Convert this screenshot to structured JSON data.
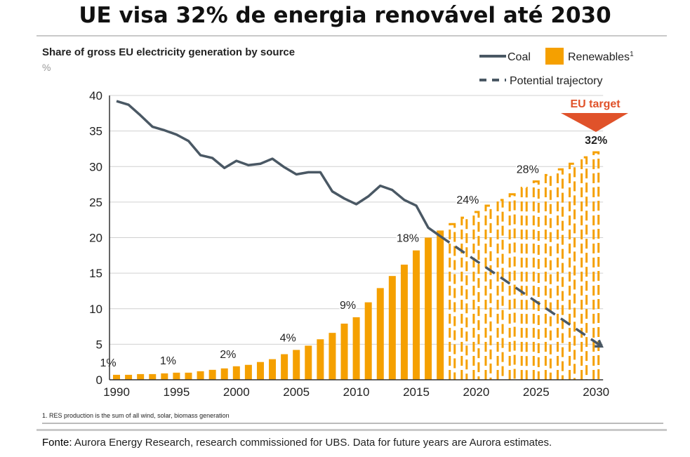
{
  "header": {
    "title": "UE visa 32% de energia renovável até 2030"
  },
  "footer": {
    "source_label": "Fonte:",
    "source_text": "Aurora Energy Research, research commissioned for UBS. Data for future years are Aurora estimates."
  },
  "chart_data": {
    "type": "bar",
    "title": "Share of gross EU electricity generation by source",
    "subtitle": "%",
    "xlabel": "",
    "ylabel": "%",
    "ylim": [
      0,
      40
    ],
    "yticks": [
      0,
      5,
      10,
      15,
      20,
      25,
      30,
      35,
      40
    ],
    "xticks": [
      1990,
      1995,
      2000,
      2005,
      2010,
      2015,
      2020,
      2025,
      2030
    ],
    "grid": true,
    "legend": {
      "placement": "top-right",
      "entries": [
        {
          "name": "Coal",
          "marker": "line",
          "color": "#4a5864"
        },
        {
          "name": "Renewables",
          "superscript": "1",
          "marker": "square",
          "color": "#f5a000"
        },
        {
          "name": "Potential trajectory",
          "marker": "dashed-line",
          "color": "#4a5864"
        }
      ]
    },
    "colors": {
      "renewables": "#f5a000",
      "coal": "#4a5864",
      "target": "#e0522a",
      "grid": "#d0d0d0",
      "axis": "#333333"
    },
    "series": [
      {
        "name": "Renewables",
        "kind": "bar",
        "x": [
          1990,
          1991,
          1992,
          1993,
          1994,
          1995,
          1996,
          1997,
          1998,
          1999,
          2000,
          2001,
          2002,
          2003,
          2004,
          2005,
          2006,
          2007,
          2008,
          2009,
          2010,
          2011,
          2012,
          2013,
          2014,
          2015,
          2016,
          2017
        ],
        "values": [
          0.7,
          0.7,
          0.8,
          0.8,
          0.9,
          1.0,
          1.0,
          1.2,
          1.4,
          1.6,
          1.9,
          2.1,
          2.5,
          2.9,
          3.6,
          4.2,
          4.8,
          5.7,
          6.6,
          7.9,
          8.8,
          10.9,
          12.9,
          14.6,
          16.2,
          18.2,
          20.0,
          21.0
        ]
      },
      {
        "name": "Renewables (projected)",
        "kind": "bar-dashed",
        "x": [
          2018,
          2019,
          2020,
          2021,
          2022,
          2023,
          2024,
          2025,
          2026,
          2027,
          2028,
          2029,
          2030
        ],
        "values": [
          21.9,
          22.8,
          23.6,
          24.5,
          25.3,
          26.1,
          27.0,
          27.9,
          28.8,
          29.6,
          30.4,
          31.3,
          32.0
        ]
      },
      {
        "name": "Coal",
        "kind": "line",
        "x": [
          1990,
          1991,
          1992,
          1993,
          1994,
          1995,
          1996,
          1997,
          1998,
          1999,
          2000,
          2001,
          2002,
          2003,
          2004,
          2005,
          2006,
          2007,
          2008,
          2009,
          2010,
          2011,
          2012,
          2013,
          2014,
          2015,
          2016,
          2017
        ],
        "values": [
          39.2,
          38.7,
          37.2,
          35.6,
          35.1,
          34.5,
          33.6,
          31.6,
          31.2,
          29.8,
          30.8,
          30.2,
          30.4,
          31.1,
          29.9,
          28.9,
          29.2,
          29.2,
          26.5,
          25.5,
          24.7,
          25.8,
          27.3,
          26.7,
          25.3,
          24.5,
          21.4,
          20.2
        ]
      },
      {
        "name": "Potential trajectory",
        "kind": "line-dashed",
        "x": [
          2017,
          2030
        ],
        "values": [
          20.2,
          4.7
        ]
      }
    ],
    "annotations": [
      {
        "x": 1990,
        "y": 0.7,
        "text": "1%"
      },
      {
        "x": 1995,
        "y": 1.0,
        "text": "1%"
      },
      {
        "x": 2000,
        "y": 1.9,
        "text": "2%"
      },
      {
        "x": 2005,
        "y": 4.2,
        "text": "4%"
      },
      {
        "x": 2010,
        "y": 8.8,
        "text": "9%"
      },
      {
        "x": 2015,
        "y": 18.2,
        "text": "18%"
      },
      {
        "x": 2020,
        "y": 23.6,
        "text": "24%"
      },
      {
        "x": 2025,
        "y": 27.9,
        "text": "28%"
      },
      {
        "x": 2030,
        "y": 32.0,
        "text": "32%",
        "bold": true
      }
    ],
    "target": {
      "label": "EU target",
      "x": 2030
    },
    "footnote": "1. RES production is the sum of all wind, solar, biomass generation"
  }
}
